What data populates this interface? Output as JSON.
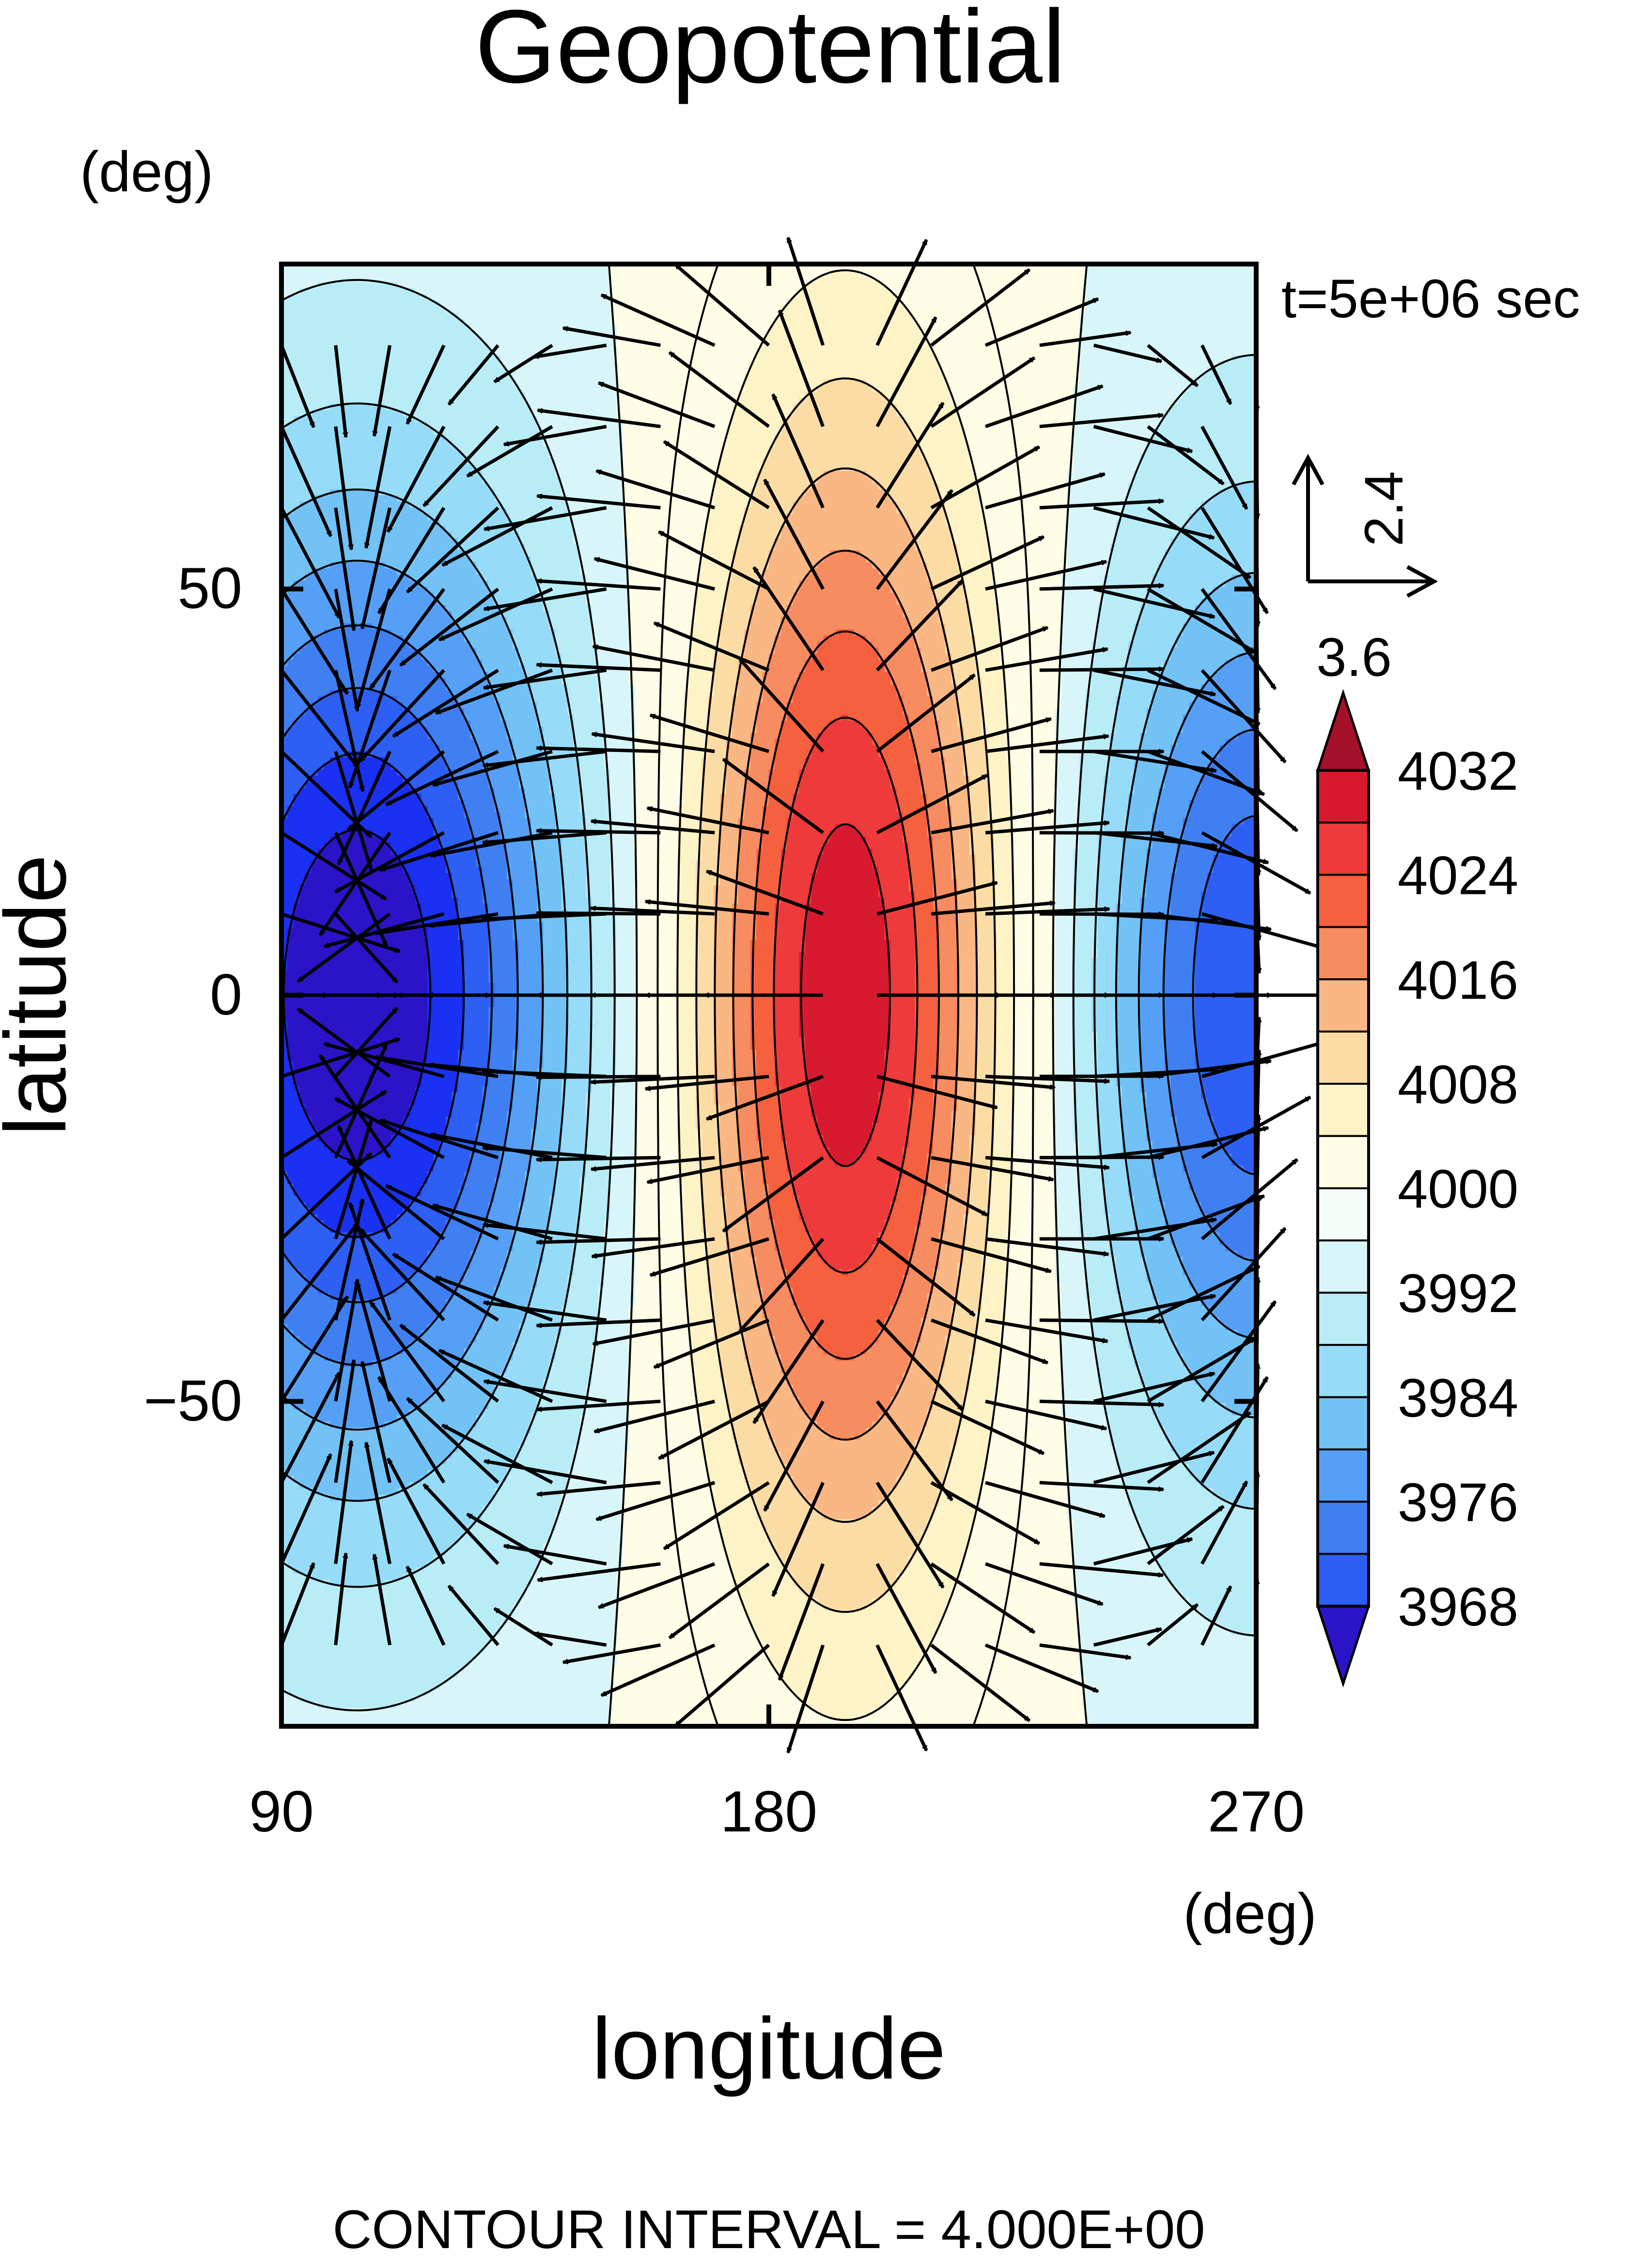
{
  "chart_data": {
    "type": "contour",
    "title": "Geopotential",
    "xlabel": "longitude",
    "ylabel": "latitude",
    "x_unit": "(deg)",
    "y_unit": "(deg)",
    "time_label": "t=5e+06 sec",
    "footer": "CONTOUR INTERVAL = 4.000E+00",
    "xlim": [
      90,
      270
    ],
    "ylim": [
      -90,
      90
    ],
    "x_ticks": [
      90,
      180,
      270
    ],
    "x_tick_labels": [
      "90",
      "180",
      "270"
    ],
    "y_ticks": [
      50,
      0,
      -50
    ],
    "y_tick_labels": [
      "50",
      "0",
      "−50"
    ],
    "contour_interval": 4,
    "field": {
      "base": 4000,
      "low_center": {
        "lon": 104,
        "lat": 0,
        "value": 3964
      },
      "high_center": {
        "lon": 194,
        "lat": 0,
        "value": 4035
      },
      "right_low_center": {
        "lon": 270,
        "lat": 0,
        "value": 3972
      }
    },
    "vector_reference": {
      "u": 3.6,
      "v": 2.4,
      "u_label": "3.6",
      "v_label": "2.4"
    },
    "colorbar": {
      "levels": [
        3964,
        3968,
        3972,
        3976,
        3980,
        3984,
        3988,
        3992,
        3996,
        4000,
        4004,
        4008,
        4012,
        4016,
        4020,
        4024,
        4028,
        4032,
        4036
      ],
      "tick_values": [
        3968,
        3976,
        3984,
        3992,
        4000,
        4008,
        4016,
        4024,
        4032
      ],
      "tick_labels": [
        "3968",
        "3976",
        "3984",
        "3992",
        "4000",
        "4008",
        "4016",
        "4024",
        "4032"
      ],
      "colors": [
        "#2b14c8",
        "#1a30f2",
        "#2d5ff4",
        "#3f7ff2",
        "#55a0f6",
        "#72c2f6",
        "#96dcf8",
        "#b8ecf7",
        "#d8f6f9",
        "#f5fdf8",
        "#fffde6",
        "#fef3c6",
        "#fcdca5",
        "#f9b783",
        "#f78c60",
        "#f5603f",
        "#ee3a3a",
        "#d71a2f",
        "#a5102b"
      ]
    }
  }
}
